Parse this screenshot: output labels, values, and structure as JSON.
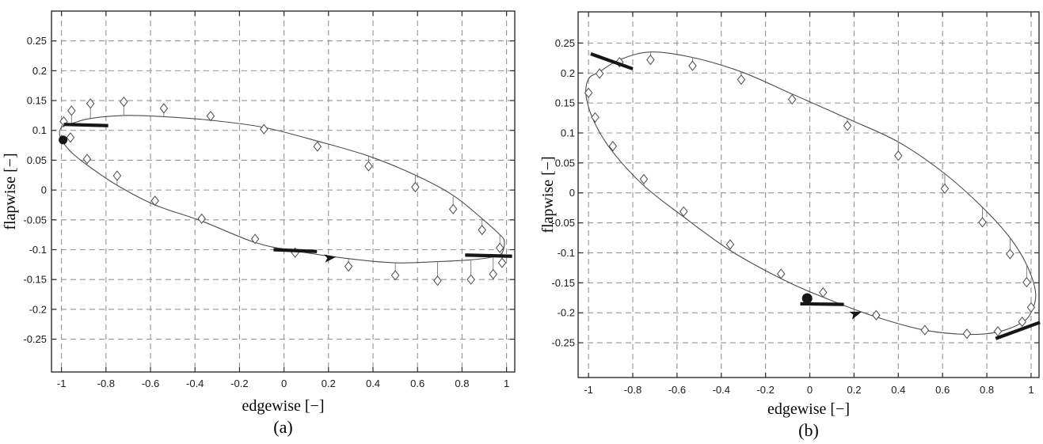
{
  "figure": {
    "background": "#ffffff",
    "description_labels": {
      "panel_a": "(a)",
      "panel_b": "(b)"
    }
  },
  "style": {
    "curve": "#4d4d4d",
    "grid": "#949494",
    "spine": "#2f2f2f",
    "marker_stroke": "#4a4a4a",
    "marker_fill": "#ffffff",
    "stem": "#777777",
    "heavy": "#161616",
    "background": "#ffffff"
  },
  "chart_data": [
    {
      "id": "a",
      "type": "line+scatter",
      "title": "",
      "xlabel": "edgewise [−]",
      "ylabel": "flapwise [−]",
      "caption": "(a)",
      "xlim": [
        -1.045,
        1.037
      ],
      "ylim": [
        -0.305,
        0.3
      ],
      "grid": "dashed",
      "legend": "none",
      "xticks": [
        -1,
        -0.8,
        -0.6,
        -0.4,
        -0.2,
        0,
        0.2,
        0.4,
        0.6,
        0.8,
        1
      ],
      "xtick_labels": [
        "-1",
        "-0.8",
        "-0.6",
        "-0.4",
        "-0.2",
        "0",
        "0.2",
        "0.4",
        "0.6",
        "0.8",
        "1"
      ],
      "yticks": [
        0.25,
        0.2,
        0.15,
        0.1,
        0.05,
        0,
        -0.05,
        -0.1,
        -0.15,
        -0.2,
        -0.25
      ],
      "ytick_labels": [
        "0.25",
        "0.2",
        "0.15",
        "0.1",
        "0.05",
        "0",
        "-0.05",
        "-0.1",
        "-0.15",
        "-0.2",
        "-0.25"
      ],
      "curve_points": [
        [
          -1.005,
          0.088
        ],
        [
          -1.0,
          0.105
        ],
        [
          -0.95,
          0.112
        ],
        [
          -0.87,
          0.12
        ],
        [
          -0.72,
          0.125
        ],
        [
          -0.54,
          0.123
        ],
        [
          -0.33,
          0.117
        ],
        [
          -0.09,
          0.105
        ],
        [
          0.15,
          0.082
        ],
        [
          0.38,
          0.057
        ],
        [
          0.59,
          0.025
        ],
        [
          0.76,
          -0.009
        ],
        [
          0.89,
          -0.048
        ],
        [
          0.97,
          -0.075
        ],
        [
          0.99,
          -0.086
        ],
        [
          0.98,
          -0.105
        ],
        [
          0.94,
          -0.112
        ],
        [
          0.84,
          -0.117
        ],
        [
          0.69,
          -0.12
        ],
        [
          0.5,
          -0.122
        ],
        [
          0.29,
          -0.115
        ],
        [
          0.05,
          -0.102
        ],
        [
          -0.13,
          -0.088
        ],
        [
          -0.37,
          -0.052
        ],
        [
          -0.58,
          -0.025
        ],
        [
          -0.75,
          0.008
        ],
        [
          -0.885,
          0.042
        ],
        [
          -0.96,
          0.065
        ]
      ],
      "markers": [
        [
          -0.99,
          0.115,
          0.105
        ],
        [
          -0.955,
          0.133,
          0.112
        ],
        [
          -0.87,
          0.145,
          0.12
        ],
        [
          -0.72,
          0.148,
          0.125
        ],
        [
          -0.54,
          0.137,
          0.123
        ],
        [
          -0.33,
          0.124,
          0.117
        ],
        [
          -0.09,
          0.102,
          0.105
        ],
        [
          0.15,
          0.073,
          0.083
        ],
        [
          0.38,
          0.04,
          0.057
        ],
        [
          0.59,
          0.005,
          0.025
        ],
        [
          0.76,
          -0.032,
          -0.009
        ],
        [
          0.89,
          -0.067,
          -0.048
        ],
        [
          0.97,
          -0.097,
          -0.075
        ],
        [
          -0.96,
          0.088,
          0.08
        ],
        [
          -0.885,
          0.052,
          0.042
        ],
        [
          -0.75,
          0.024,
          0.008
        ],
        [
          -0.58,
          -0.018,
          -0.025
        ],
        [
          -0.37,
          -0.048,
          -0.052
        ],
        [
          -0.13,
          -0.082,
          -0.088
        ],
        [
          0.05,
          -0.105,
          -0.102
        ],
        [
          0.29,
          -0.128,
          -0.115
        ],
        [
          0.5,
          -0.143,
          -0.122
        ],
        [
          0.69,
          -0.152,
          -0.12
        ],
        [
          0.84,
          -0.15,
          -0.117
        ],
        [
          0.94,
          -0.141,
          -0.112
        ],
        [
          0.98,
          -0.122,
          -0.105
        ]
      ],
      "start_dot": [
        -0.993,
        0.084
      ],
      "arrow": {
        "tip": [
          0.235,
          -0.112
        ],
        "angle_deg": -8
      },
      "bars": [
        [
          [
            -0.99,
            0.11
          ],
          [
            -0.79,
            0.108
          ]
        ],
        [
          [
            -0.047,
            -0.1
          ],
          [
            0.148,
            -0.103
          ]
        ],
        [
          [
            0.814,
            -0.109
          ],
          [
            1.025,
            -0.111
          ]
        ]
      ]
    },
    {
      "id": "b",
      "type": "line+scatter",
      "title": "",
      "xlabel": "edgewise [−]",
      "ylabel": "flapwise [−]",
      "caption": "(b)",
      "xlim": [
        -1.047,
        1.036
      ],
      "ylim": [
        -0.308,
        0.302
      ],
      "grid": "dashed",
      "legend": "none",
      "xticks": [
        -1,
        -0.8,
        -0.6,
        -0.4,
        -0.2,
        0,
        0.2,
        0.4,
        0.6,
        0.8,
        1
      ],
      "xtick_labels": [
        "-1",
        "-0.8",
        "-0.6",
        "-0.4",
        "-0.2",
        "0",
        "0.2",
        "0.4",
        "0.6",
        "0.8",
        "1"
      ],
      "yticks": [
        0.25,
        0.2,
        0.15,
        0.1,
        0.05,
        0,
        -0.05,
        -0.1,
        -0.15,
        -0.2,
        -0.25
      ],
      "ytick_labels": [
        "0.25",
        "0.2",
        "0.15",
        "0.1",
        "0.05",
        "0",
        "-0.05",
        "-0.1",
        "-0.15",
        "-0.2",
        "-0.25"
      ],
      "curve_points": [
        [
          -1.01,
          0.16
        ],
        [
          -1.0,
          0.19
        ],
        [
          -0.95,
          0.202
        ],
        [
          -0.86,
          0.222
        ],
        [
          -0.72,
          0.235
        ],
        [
          -0.53,
          0.226
        ],
        [
          -0.31,
          0.202
        ],
        [
          -0.08,
          0.165
        ],
        [
          0.17,
          0.124
        ],
        [
          0.4,
          0.085
        ],
        [
          0.61,
          0.032
        ],
        [
          0.78,
          -0.024
        ],
        [
          0.905,
          -0.075
        ],
        [
          0.98,
          -0.12
        ],
        [
          1.02,
          -0.165
        ],
        [
          1.005,
          -0.196
        ],
        [
          0.96,
          -0.216
        ],
        [
          0.85,
          -0.232
        ],
        [
          0.71,
          -0.236
        ],
        [
          0.52,
          -0.229
        ],
        [
          0.3,
          -0.207
        ],
        [
          0.06,
          -0.174
        ],
        [
          -0.13,
          -0.143
        ],
        [
          -0.36,
          -0.096
        ],
        [
          -0.57,
          -0.04
        ],
        [
          -0.75,
          0.012
        ],
        [
          -0.89,
          0.068
        ],
        [
          -0.97,
          0.115
        ]
      ],
      "markers": [
        [
          -0.95,
          0.199,
          0.202
        ],
        [
          -0.86,
          0.218,
          0.222
        ],
        [
          -0.72,
          0.222,
          0.235
        ],
        [
          -0.53,
          0.212,
          0.226
        ],
        [
          -0.31,
          0.189,
          0.202
        ],
        [
          -0.08,
          0.156,
          0.165
        ],
        [
          0.17,
          0.112,
          0.124
        ],
        [
          0.4,
          0.062,
          0.085
        ],
        [
          0.61,
          0.007,
          0.032
        ],
        [
          0.78,
          -0.049,
          -0.024
        ],
        [
          0.905,
          -0.102,
          -0.075
        ],
        [
          0.98,
          -0.149,
          -0.12
        ],
        [
          1.0,
          -0.191,
          -0.2
        ],
        [
          0.96,
          -0.215,
          -0.216
        ],
        [
          0.85,
          -0.231,
          -0.232
        ],
        [
          0.71,
          -0.235,
          -0.236
        ],
        [
          0.52,
          -0.229,
          -0.229
        ],
        [
          0.3,
          -0.204,
          -0.207
        ],
        [
          0.06,
          -0.166,
          -0.174
        ],
        [
          -0.13,
          -0.135,
          -0.143
        ],
        [
          -0.36,
          -0.086,
          -0.096
        ],
        [
          -0.57,
          -0.031,
          -0.04
        ],
        [
          -0.75,
          0.023,
          0.012
        ],
        [
          -0.89,
          0.078,
          0.068
        ],
        [
          -0.97,
          0.126,
          0.115
        ],
        [
          -1.0,
          0.167,
          0.162
        ]
      ],
      "start_dot": [
        -0.012,
        -0.176
      ],
      "arrow": {
        "tip": [
          0.235,
          -0.198
        ],
        "angle_deg": -20
      },
      "bars": [
        [
          [
            -0.99,
            0.232
          ],
          [
            -0.8,
            0.207
          ]
        ],
        [
          [
            -0.043,
            -0.185
          ],
          [
            0.154,
            -0.186
          ]
        ],
        [
          [
            0.84,
            -0.243
          ],
          [
            1.04,
            -0.216
          ]
        ]
      ]
    }
  ]
}
